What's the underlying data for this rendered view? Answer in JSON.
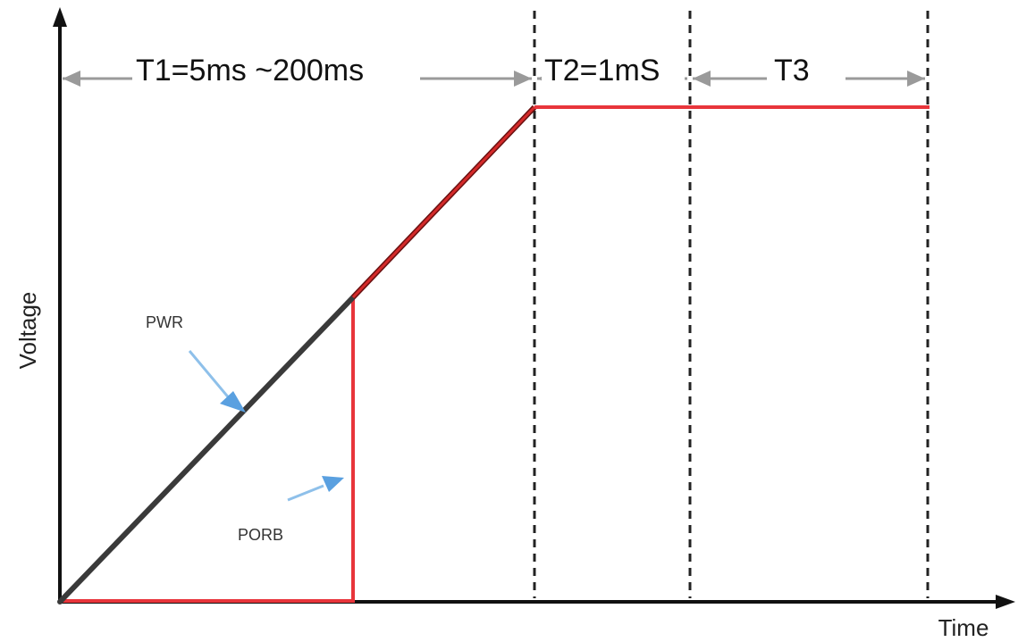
{
  "axes": {
    "y_label": "Voltage",
    "x_label": "Time"
  },
  "intervals": [
    {
      "label": "T1=5ms ~200ms"
    },
    {
      "label": "T2=1mS"
    },
    {
      "label": "T3"
    }
  ],
  "signals": {
    "pwr": {
      "label": "PWR",
      "color": "#3a3a3a"
    },
    "porb": {
      "label": "PORB",
      "color": "#e8353b"
    }
  },
  "colors": {
    "axis": "#111111",
    "dimension_line": "#9a9a9a",
    "pointer_arrow": "#5aa0e0"
  }
}
